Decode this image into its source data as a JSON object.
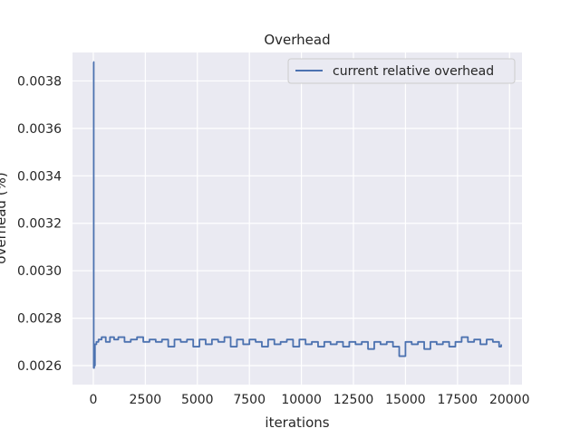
{
  "chart_data": {
    "type": "line",
    "title": "Overhead",
    "xlabel": "iterations",
    "ylabel": "overhead (%)",
    "xlim": [
      -1000,
      20600
    ],
    "ylim": [
      0.00252,
      0.00392
    ],
    "xticks": [
      0,
      2500,
      5000,
      7500,
      10000,
      12500,
      15000,
      17500,
      20000
    ],
    "xtick_labels": [
      "0",
      "2500",
      "5000",
      "7500",
      "10000",
      "12500",
      "15000",
      "17500",
      "20000"
    ],
    "yticks": [
      0.0026,
      0.0028,
      0.003,
      0.0032,
      0.0034,
      0.0036,
      0.0038
    ],
    "ytick_labels": [
      "0.0026",
      "0.0028",
      "0.0030",
      "0.0032",
      "0.0034",
      "0.0036",
      "0.0038"
    ],
    "grid": true,
    "legend_position": "top-right",
    "series": [
      {
        "name": "current relative overhead",
        "color": "#4c72b0",
        "x": [
          0,
          20,
          40,
          80,
          150,
          250,
          400,
          600,
          800,
          1000,
          1200,
          1500,
          1800,
          2100,
          2400,
          2700,
          3000,
          3300,
          3600,
          3900,
          4200,
          4500,
          4800,
          5100,
          5400,
          5700,
          6000,
          6300,
          6600,
          6900,
          7200,
          7500,
          7800,
          8100,
          8400,
          8700,
          9000,
          9300,
          9600,
          9900,
          10200,
          10500,
          10800,
          11100,
          11400,
          11700,
          12000,
          12300,
          12600,
          12900,
          13200,
          13500,
          13800,
          14100,
          14400,
          14700,
          15000,
          15300,
          15600,
          15900,
          16200,
          16500,
          16800,
          17100,
          17400,
          17700,
          18000,
          18300,
          18600,
          18900,
          19200,
          19500,
          19600
        ],
        "y": [
          0.00388,
          0.00259,
          0.0026,
          0.00269,
          0.0027,
          0.00271,
          0.00272,
          0.0027,
          0.00272,
          0.00271,
          0.00272,
          0.0027,
          0.00271,
          0.00272,
          0.0027,
          0.00271,
          0.0027,
          0.00271,
          0.00268,
          0.00271,
          0.0027,
          0.00271,
          0.00268,
          0.00271,
          0.00269,
          0.00271,
          0.0027,
          0.00272,
          0.00268,
          0.00271,
          0.00269,
          0.00271,
          0.0027,
          0.00268,
          0.00271,
          0.00269,
          0.0027,
          0.00271,
          0.00268,
          0.00271,
          0.00269,
          0.0027,
          0.00268,
          0.0027,
          0.00269,
          0.0027,
          0.00268,
          0.0027,
          0.00269,
          0.0027,
          0.00267,
          0.0027,
          0.00269,
          0.0027,
          0.00268,
          0.00264,
          0.0027,
          0.00269,
          0.0027,
          0.00267,
          0.0027,
          0.00269,
          0.0027,
          0.00268,
          0.0027,
          0.00272,
          0.0027,
          0.00271,
          0.00269,
          0.00271,
          0.0027,
          0.00268,
          0.00269
        ]
      }
    ]
  }
}
